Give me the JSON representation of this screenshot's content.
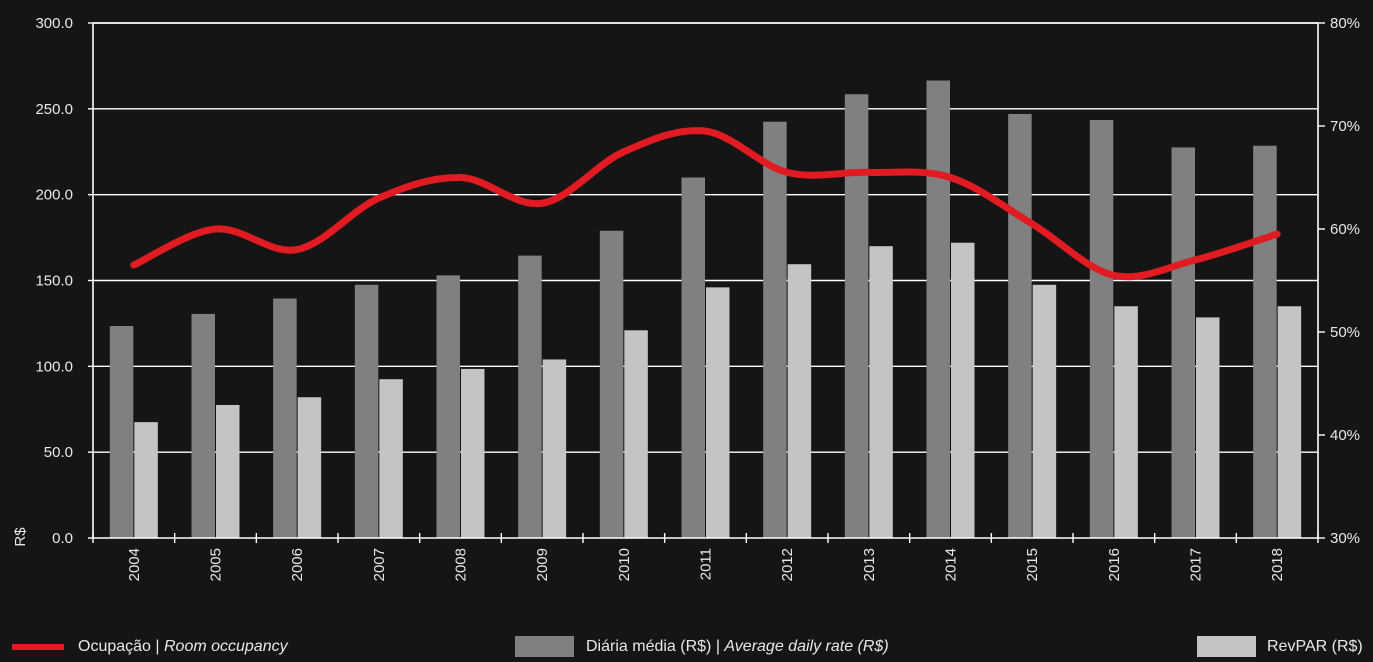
{
  "colors": {
    "background": "#151515",
    "adr": "#808080",
    "revpar": "#c4c4c4",
    "occupancy": "#e01b22",
    "axis": "#ffffff",
    "text": "#e8e8e8"
  },
  "chart_data": {
    "type": "bar",
    "categories": [
      "2004",
      "2005",
      "2006",
      "2007",
      "2008",
      "2009",
      "2010",
      "2011",
      "2012",
      "2013",
      "2014",
      "2015",
      "2016",
      "2017",
      "2018"
    ],
    "series": [
      {
        "name": "Diária média (R$) | Average daily rate (R$)",
        "type": "bar",
        "axis": "left",
        "values": [
          123.5,
          130.5,
          139.5,
          147.5,
          153.0,
          164.5,
          179.0,
          210.0,
          242.5,
          258.5,
          266.5,
          247.0,
          243.5,
          227.5,
          228.5
        ]
      },
      {
        "name": "RevPAR (R$)",
        "type": "bar",
        "axis": "left",
        "values": [
          67.5,
          77.5,
          82.0,
          92.5,
          98.5,
          104.0,
          121.0,
          146.0,
          159.5,
          170.0,
          172.0,
          147.5,
          135.0,
          128.5,
          135.0
        ]
      },
      {
        "name": "Ocupação | Room occupancy",
        "type": "line",
        "axis": "right",
        "values": [
          56.5,
          60.0,
          58.0,
          63.0,
          65.0,
          62.5,
          67.5,
          69.5,
          65.5,
          65.5,
          65.0,
          60.5,
          55.5,
          57.0,
          59.5
        ]
      }
    ],
    "y_left": {
      "ylabel": "R$",
      "ylim": [
        0,
        300
      ],
      "ticks": [
        "0.0",
        "50.0",
        "100.0",
        "150.0",
        "200.0",
        "250.0",
        "300.0"
      ]
    },
    "y_right": {
      "ylim": [
        30,
        80
      ],
      "ticks": [
        "30%",
        "40%",
        "50%",
        "60%",
        "70%",
        "80%"
      ]
    },
    "grid": true,
    "legend_position": "bottom"
  },
  "legend": {
    "occupancy": {
      "pt": "Ocupação | ",
      "en": "Room occupancy"
    },
    "adr": {
      "pt": "Diária média (R$) | ",
      "en": "Average daily rate (R$)"
    },
    "revpar": {
      "pt": "RevPAR (R$)",
      "en": ""
    }
  }
}
